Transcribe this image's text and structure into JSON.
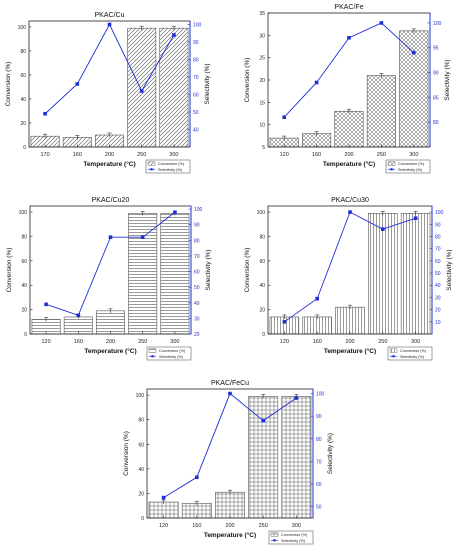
{
  "chart_data": [
    {
      "type": "bar",
      "title": "PKAC/Cu",
      "categories": [
        "170",
        "160",
        "200",
        "250",
        "300"
      ],
      "xlabel": "Temperature (°C)",
      "ylabel": "Conversion (%)",
      "ylabel_right": "Selectivity (%)",
      "ylim": [
        0,
        105
      ],
      "yticks": [
        0,
        20,
        40,
        60,
        80,
        100
      ],
      "ylim_right": [
        30,
        102
      ],
      "yticks_right": [
        40,
        50,
        60,
        70,
        80,
        90,
        100
      ],
      "pattern": "diag",
      "series": [
        {
          "name": "Conversion (%)",
          "kind": "bar",
          "values": [
            9,
            8,
            10,
            99,
            99
          ]
        },
        {
          "name": "Selectivity (%)",
          "kind": "line",
          "axis": "right",
          "values": [
            49,
            66,
            100,
            62,
            94
          ]
        }
      ],
      "legend": "bottom-right"
    },
    {
      "type": "bar",
      "title": "PKAC/Fe",
      "categories": [
        "120",
        "160",
        "200",
        "250",
        "300"
      ],
      "xlabel": "Temperature (°C)",
      "ylabel": "Conversion (%)",
      "ylabel_right": "Selectivity (%)",
      "ylim": [
        5,
        35
      ],
      "yticks": [
        5,
        10,
        15,
        20,
        25,
        30,
        35
      ],
      "ylim_right": [
        75,
        102
      ],
      "yticks_right": [
        80,
        85,
        90,
        95,
        100
      ],
      "pattern": "cross",
      "series": [
        {
          "name": "Conversion (%)",
          "kind": "bar",
          "values": [
            7,
            8,
            13,
            21,
            31
          ]
        },
        {
          "name": "Selectivity (%)",
          "kind": "line",
          "axis": "right",
          "values": [
            81,
            88,
            97,
            100,
            94
          ]
        }
      ],
      "legend": "bottom-right"
    },
    {
      "type": "bar",
      "title": "PKAC/Cu20",
      "categories": [
        "120",
        "160",
        "200",
        "250",
        "300"
      ],
      "xlabel": "Temperature (°C)",
      "ylabel": "Conversion (%)",
      "ylabel_right": "Selectivity (%)",
      "ylim": [
        0,
        105
      ],
      "yticks": [
        0,
        20,
        40,
        60,
        80,
        100
      ],
      "ylim_right": [
        20,
        102
      ],
      "yticks_right": [
        20,
        30,
        40,
        50,
        60,
        70,
        80,
        90,
        100
      ],
      "pattern": "hlines",
      "series": [
        {
          "name": "Conversion (%)",
          "kind": "bar",
          "values": [
            12,
            14,
            19,
            99,
            99
          ]
        },
        {
          "name": "Selectivity (%)",
          "kind": "line",
          "axis": "right",
          "values": [
            39,
            32,
            82,
            82,
            98
          ]
        }
      ],
      "legend": "bottom-right"
    },
    {
      "type": "bar",
      "title": "PKAC/Cu30",
      "categories": [
        "120",
        "160",
        "200",
        "250",
        "300"
      ],
      "xlabel": "Temperature (°C)",
      "ylabel": "Conversion (%)",
      "ylabel_right": "Selectivity (%)",
      "ylim": [
        0,
        105
      ],
      "yticks": [
        0,
        20,
        40,
        60,
        80,
        100
      ],
      "ylim_right": [
        0,
        105
      ],
      "yticks_right": [
        10,
        20,
        30,
        40,
        50,
        60,
        70,
        80,
        90,
        100
      ],
      "pattern": "vlines",
      "series": [
        {
          "name": "Conversion (%)",
          "kind": "bar",
          "values": [
            14,
            14,
            22,
            99,
            99
          ]
        },
        {
          "name": "Selectivity (%)",
          "kind": "line",
          "axis": "right",
          "values": [
            10,
            29,
            100,
            86,
            95
          ]
        }
      ],
      "legend": "bottom-right"
    },
    {
      "type": "bar",
      "title": "PKAC/FeCu",
      "categories": [
        "120",
        "160",
        "200",
        "250",
        "300"
      ],
      "xlabel": "Temperature (°C)",
      "ylabel": "Conversion (%)",
      "ylabel_right": "Selectivity (%)",
      "ylim": [
        0,
        105
      ],
      "yticks": [
        0,
        20,
        40,
        60,
        80,
        100
      ],
      "ylim_right": [
        45,
        102
      ],
      "yticks_right": [
        50,
        60,
        70,
        80,
        90,
        100
      ],
      "pattern": "grid",
      "series": [
        {
          "name": "Conversion (%)",
          "kind": "bar",
          "values": [
            13,
            12,
            21,
            99,
            99
          ]
        },
        {
          "name": "Selectivity (%)",
          "kind": "line",
          "axis": "right",
          "values": [
            54,
            63,
            100,
            88,
            98
          ]
        }
      ],
      "legend": "bottom-right"
    }
  ],
  "colors": {
    "line": "#1f2fd8",
    "bar_stroke": "#555555",
    "axis": "#222222",
    "right_axis": "#1f2fd8"
  }
}
